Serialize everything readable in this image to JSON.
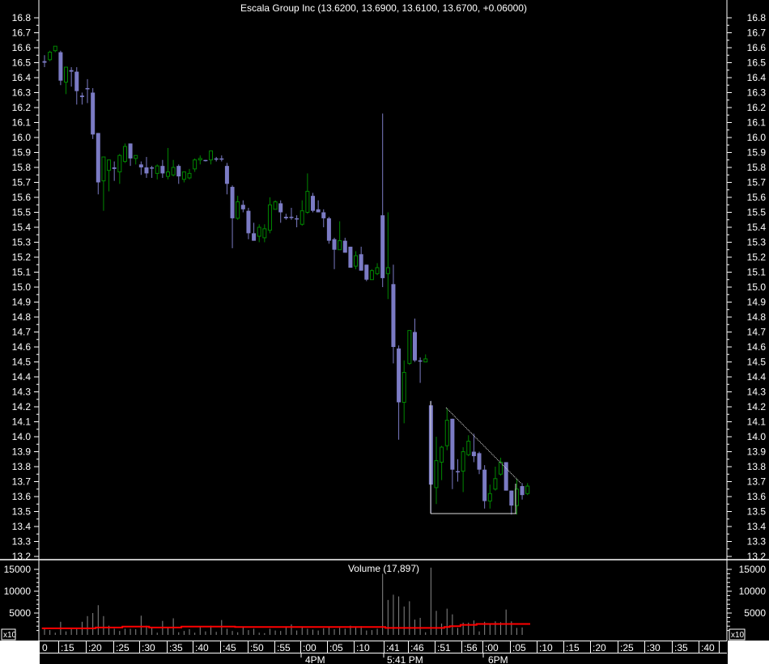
{
  "chart_data": [
    {
      "type": "candlestick",
      "title": "Escala Group Inc (13.6200, 13.6900, 13.6100, 13.6700, +0.06000)",
      "ylim": [
        13.2,
        16.8
      ],
      "y_ticks": [
        "16.8",
        "16.7",
        "16.6",
        "16.5",
        "16.4",
        "16.3",
        "16.2",
        "16.1",
        "16.0",
        "15.9",
        "15.8",
        "15.7",
        "15.6",
        "15.5",
        "15.4",
        "15.3",
        "15.2",
        "15.1",
        "15.0",
        "14.9",
        "14.8",
        "14.7",
        "14.6",
        "14.5",
        "14.4",
        "14.3",
        "14.2",
        "14.1",
        "14.0",
        "13.9",
        "13.8",
        "13.7",
        "13.6",
        "13.5",
        "13.4",
        "13.3",
        "13.2"
      ],
      "colors": {
        "up": "#008800",
        "down": "#7b7bc4",
        "trendline": "#dddddd"
      },
      "candles_ohlc": [
        [
          16.51,
          16.55,
          16.47,
          16.5
        ],
        [
          16.52,
          16.58,
          16.51,
          16.57
        ],
        [
          16.58,
          16.61,
          16.57,
          16.61
        ],
        [
          16.57,
          16.58,
          16.35,
          16.38
        ],
        [
          16.37,
          16.47,
          16.29,
          16.47
        ],
        [
          16.45,
          16.47,
          16.34,
          16.44
        ],
        [
          16.44,
          16.47,
          16.22,
          16.31
        ],
        [
          16.28,
          16.3,
          16.22,
          16.27
        ],
        [
          16.33,
          16.39,
          16.23,
          16.33
        ],
        [
          16.3,
          16.33,
          15.99,
          16.02
        ],
        [
          16.03,
          16.03,
          15.62,
          15.7
        ],
        [
          15.71,
          15.87,
          15.51,
          15.87
        ],
        [
          15.78,
          15.85,
          15.64,
          15.85
        ],
        [
          15.8,
          15.84,
          15.71,
          15.79
        ],
        [
          15.77,
          15.89,
          15.69,
          15.88
        ],
        [
          15.84,
          15.96,
          15.83,
          15.94
        ],
        [
          15.96,
          15.96,
          15.81,
          15.86
        ],
        [
          15.86,
          15.88,
          15.82,
          15.88
        ],
        [
          15.82,
          15.84,
          15.75,
          15.8
        ],
        [
          15.8,
          15.87,
          15.73,
          15.76
        ],
        [
          15.8,
          15.81,
          15.73,
          15.8
        ],
        [
          15.76,
          15.82,
          15.72,
          15.81
        ],
        [
          15.81,
          15.85,
          15.73,
          15.76
        ],
        [
          15.74,
          15.93,
          15.72,
          15.77
        ],
        [
          15.75,
          15.85,
          15.74,
          15.8
        ],
        [
          15.81,
          15.82,
          15.69,
          15.74
        ],
        [
          15.72,
          15.77,
          15.7,
          15.77
        ],
        [
          15.73,
          15.79,
          15.72,
          15.76
        ],
        [
          15.79,
          15.86,
          15.77,
          15.85
        ],
        [
          15.85,
          15.88,
          15.82,
          15.86
        ],
        [
          15.85,
          15.85,
          15.84,
          15.85
        ],
        [
          15.85,
          15.91,
          15.82,
          15.91
        ],
        [
          15.86,
          15.87,
          15.84,
          15.86
        ],
        [
          15.86,
          15.88,
          15.84,
          15.86
        ],
        [
          15.81,
          15.83,
          15.62,
          15.69
        ],
        [
          15.67,
          15.68,
          15.26,
          15.46
        ],
        [
          15.46,
          15.61,
          15.45,
          15.57
        ],
        [
          15.55,
          15.58,
          15.5,
          15.52
        ],
        [
          15.51,
          15.53,
          15.32,
          15.36
        ],
        [
          15.36,
          15.43,
          15.31,
          15.31
        ],
        [
          15.34,
          15.42,
          15.3,
          15.4
        ],
        [
          15.33,
          15.42,
          15.3,
          15.39
        ],
        [
          15.38,
          15.6,
          15.36,
          15.55
        ],
        [
          15.52,
          15.58,
          15.52,
          15.57
        ],
        [
          15.56,
          15.58,
          15.43,
          15.5
        ],
        [
          15.47,
          15.49,
          15.45,
          15.46
        ],
        [
          15.47,
          15.53,
          15.45,
          15.47
        ],
        [
          15.46,
          15.48,
          15.4,
          15.46
        ],
        [
          15.42,
          15.58,
          15.41,
          15.51
        ],
        [
          15.5,
          15.76,
          15.49,
          15.64
        ],
        [
          15.61,
          15.63,
          15.5,
          15.51
        ],
        [
          15.52,
          15.58,
          15.5,
          15.5
        ],
        [
          15.5,
          15.52,
          15.4,
          15.46
        ],
        [
          15.46,
          15.47,
          15.29,
          15.31
        ],
        [
          15.32,
          15.33,
          15.12,
          15.25
        ],
        [
          15.25,
          15.44,
          15.25,
          15.31
        ],
        [
          15.31,
          15.33,
          15.23,
          15.23
        ],
        [
          15.27,
          15.27,
          15.13,
          15.13
        ],
        [
          15.14,
          15.24,
          15.12,
          15.21
        ],
        [
          15.22,
          15.27,
          15.11,
          15.11
        ],
        [
          15.15,
          15.15,
          15.04,
          15.05
        ],
        [
          15.05,
          15.12,
          15.05,
          15.11
        ],
        [
          15.09,
          15.16,
          15.08,
          15.13
        ],
        [
          15.48,
          16.16,
          15.0,
          15.06
        ],
        [
          15.09,
          15.5,
          14.92,
          15.13
        ],
        [
          15.02,
          15.15,
          14.49,
          14.6
        ],
        [
          14.59,
          14.61,
          13.98,
          14.23
        ],
        [
          14.23,
          14.51,
          14.09,
          14.43
        ],
        [
          14.49,
          14.71,
          14.48,
          14.71
        ],
        [
          14.7,
          14.79,
          14.5,
          14.51
        ],
        [
          14.51,
          14.53,
          14.36,
          14.51
        ],
        [
          14.5,
          14.55,
          14.5,
          14.52
        ],
        [
          14.21,
          14.24,
          13.49,
          13.68
        ],
        [
          13.66,
          14.0,
          13.55,
          13.84
        ],
        [
          13.83,
          13.94,
          13.71,
          13.93
        ],
        [
          13.94,
          14.19,
          13.91,
          14.11
        ],
        [
          14.12,
          14.12,
          13.65,
          13.78
        ],
        [
          13.77,
          13.85,
          13.7,
          13.77
        ],
        [
          13.77,
          13.93,
          13.63,
          13.9
        ],
        [
          13.88,
          14.01,
          13.87,
          13.97
        ],
        [
          13.9,
          14.02,
          13.83,
          13.87
        ],
        [
          13.89,
          13.9,
          13.75,
          13.78
        ],
        [
          13.78,
          13.81,
          13.52,
          13.57
        ],
        [
          13.57,
          13.68,
          13.52,
          13.62
        ],
        [
          13.65,
          13.8,
          13.64,
          13.72
        ],
        [
          13.75,
          13.86,
          13.74,
          13.83
        ],
        [
          13.83,
          13.83,
          13.64,
          13.64
        ],
        [
          13.64,
          13.64,
          13.48,
          13.54
        ],
        [
          13.54,
          13.72,
          13.48,
          13.65
        ],
        [
          13.67,
          13.69,
          13.58,
          13.61
        ],
        [
          13.62,
          13.69,
          13.61,
          13.67
        ]
      ]
    },
    {
      "type": "bar",
      "title": "Volume (17,897)",
      "ylim": [
        0,
        16000
      ],
      "y_ticks": [
        "15000",
        "10000",
        "5000"
      ],
      "unit_badge": "x10",
      "colors": {
        "bars": "#888888",
        "average": "#ff0000"
      },
      "values": [
        1400,
        1100,
        500,
        3000,
        800,
        1300,
        1500,
        3000,
        4300,
        5000,
        6800,
        4300,
        2100,
        1400,
        900,
        1400,
        1400,
        1300,
        4400,
        2100,
        1600,
        500,
        3200,
        1600,
        3800,
        600,
        900,
        1300,
        500,
        1800,
        800,
        2100,
        700,
        3400,
        1400,
        900,
        600,
        1800,
        1100,
        1400,
        500,
        400,
        1400,
        1000,
        900,
        1700,
        2400,
        1000,
        1700,
        1400,
        1200,
        1000,
        1500,
        1700,
        1300,
        1600,
        1400,
        2100,
        1800,
        2000,
        1000,
        1100,
        1400,
        14000,
        8000,
        9200,
        8800,
        6500,
        7700,
        3500,
        3900,
        600,
        15400,
        5500,
        2600,
        6000,
        4700,
        1600,
        2800,
        2800,
        3300,
        800,
        3000,
        2400,
        3100,
        2900,
        5800,
        3100,
        1600,
        1700
      ],
      "average": [
        1500,
        1500,
        1500,
        1500,
        1500,
        1500,
        1500,
        1500,
        1500,
        1500,
        1700,
        1700,
        1700,
        1700,
        1700,
        1900,
        1900,
        1900,
        1900,
        1900,
        1700,
        1700,
        1700,
        1700,
        1700,
        1700,
        1900,
        1900,
        1900,
        1900,
        1900,
        1900,
        1900,
        1900,
        1900,
        1900,
        1800,
        1800,
        1800,
        1800,
        1800,
        1800,
        1800,
        1800,
        1800,
        1800,
        1800,
        1800,
        1800,
        1800,
        1800,
        1800,
        1800,
        1800,
        1800,
        1800,
        1800,
        1800,
        1800,
        1800,
        1800,
        1800,
        1800,
        1800,
        1600,
        1600,
        1600,
        1600,
        1600,
        1600,
        1600,
        1600,
        1600,
        1600,
        1600,
        1800,
        2000,
        2000,
        2300,
        2300,
        2300,
        2500,
        2500,
        2500,
        2500,
        2500,
        2500,
        2500,
        2500,
        2500,
        2500
      ]
    }
  ],
  "time_axis": {
    "minute_labels": [
      "0",
      ":15",
      ":20",
      ":25",
      ":30",
      ":35",
      ":40",
      ":45",
      ":50",
      ":55",
      ":00",
      ":05",
      ":10",
      ":41",
      ":46",
      ":51",
      ":56",
      ":00",
      ":05",
      ":10",
      ":15",
      ":20",
      ":25",
      ":30",
      ":35",
      ":40"
    ],
    "hour_labels": [
      "4PM",
      "5:41 PM",
      "6PM"
    ]
  }
}
